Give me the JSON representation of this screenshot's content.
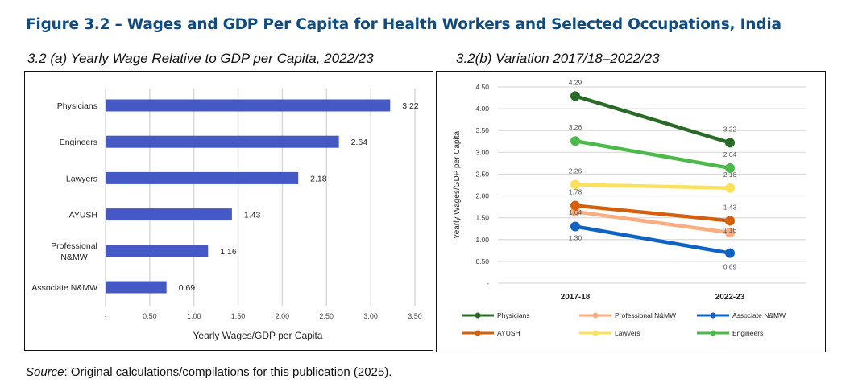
{
  "figure_title": "Figure 3.2 – Wages and GDP Per Capita for Health Workers and Selected Occupations, India",
  "source": {
    "label": "Source",
    "text": ": Original calculations/compilations for this publication (2025)."
  },
  "chart_data": [
    {
      "type": "bar",
      "orientation": "horizontal",
      "title": "3.2 (a) Yearly Wage Relative to GDP per Capita, 2022/23",
      "categories": [
        "Physicians",
        "Engineers",
        "Lawyers",
        "AYUSH",
        "Professional N&MW",
        "Associate N&MW"
      ],
      "category_lines": [
        [
          "Physicians"
        ],
        [
          "Engineers"
        ],
        [
          "Lawyers"
        ],
        [
          "AYUSH"
        ],
        [
          "Professional",
          "N&MW"
        ],
        [
          "Associate N&MW"
        ]
      ],
      "values": [
        3.22,
        2.64,
        2.18,
        1.43,
        1.16,
        0.69
      ],
      "data_labels": [
        "3.22",
        "2.64",
        "2.18",
        "1.43",
        "1.16",
        "0.69"
      ],
      "xlabel": "Yearly Wages/GDP per Capita",
      "xlim": [
        0,
        3.5
      ],
      "x_ticks": [
        0,
        0.5,
        1,
        1.5,
        2,
        2.5,
        3,
        3.5
      ],
      "x_tick_labels": [
        "-",
        "0.50",
        "1.00",
        "1.50",
        "2.00",
        "2.50",
        "3.00",
        "3.50"
      ],
      "grid": "vertical",
      "color": "#4559c6"
    },
    {
      "type": "line",
      "title": "3.2(b) Variation 2017/18–2022/23",
      "categories": [
        "2017-18",
        "2022-23"
      ],
      "ylabel": "Yearly Wages/GDP per Capita",
      "ylim": [
        0,
        4.5
      ],
      "y_ticks": [
        0,
        0.5,
        1,
        1.5,
        2,
        2.5,
        3,
        3.5,
        4,
        4.5
      ],
      "y_tick_labels": [
        "-",
        "0.50",
        "1.00",
        "1.50",
        "2.00",
        "2.50",
        "3.00",
        "3.50",
        "4.00",
        "4.50"
      ],
      "grid": "horizontal",
      "legend": "bottom",
      "series": [
        {
          "name": "Physicians",
          "values": [
            4.29,
            3.22
          ],
          "labels": [
            "4.29",
            "3.22"
          ],
          "color": "#2a6a27"
        },
        {
          "name": "Professional N&MW",
          "values": [
            1.64,
            1.16
          ],
          "labels": [
            "1.64",
            "1.16"
          ],
          "color": "#f8ae80"
        },
        {
          "name": "Associate N&MW",
          "values": [
            1.3,
            0.69
          ],
          "labels": [
            "1.30",
            "0.69"
          ],
          "color": "#0f63c2"
        },
        {
          "name": "AYUSH",
          "values": [
            1.78,
            1.43
          ],
          "labels": [
            "1.78",
            "1.43"
          ],
          "color": "#d4600e"
        },
        {
          "name": "Lawyers",
          "values": [
            2.26,
            2.18
          ],
          "labels": [
            "2.26",
            "2.18"
          ],
          "color": "#fbe15c"
        },
        {
          "name": "Engineers",
          "values": [
            3.26,
            2.64
          ],
          "labels": [
            "3.26",
            "2.64"
          ],
          "color": "#4cba4a"
        }
      ]
    }
  ]
}
